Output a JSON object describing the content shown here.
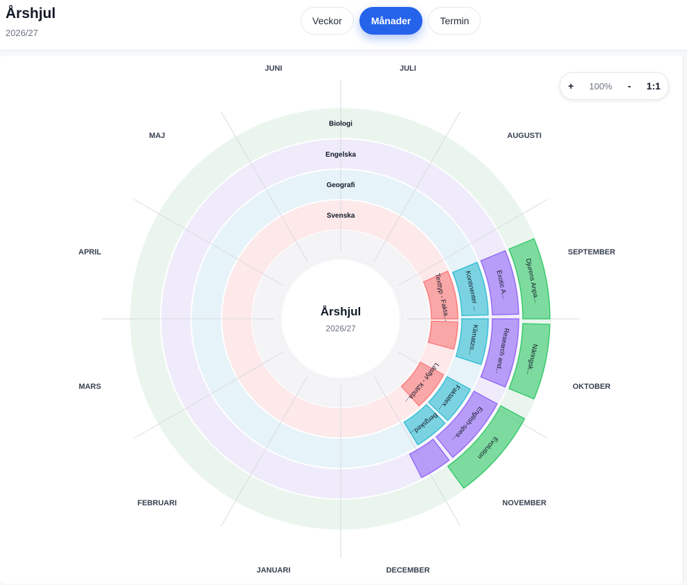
{
  "header": {
    "title": "Årshjul",
    "subtitle": "2026/27"
  },
  "tabs": [
    {
      "label": "Veckor",
      "active": false
    },
    {
      "label": "Månader",
      "active": true
    },
    {
      "label": "Termin",
      "active": false
    }
  ],
  "zoom": {
    "plus": "+",
    "level": "100%",
    "minus": "-",
    "reset": "1:1"
  },
  "wheel": {
    "center_title": "Årshjul",
    "center_subtitle": "2026/27",
    "months": [
      "JULI",
      "AUGUSTI",
      "SEPTEMBER",
      "OKTOBER",
      "NOVEMBER",
      "DECEMBER",
      "JANUARI",
      "FEBRUARI",
      "MARS",
      "APRIL",
      "MAJ",
      "JUNI"
    ],
    "rings": [
      {
        "name": "Svenska",
        "color": "#f87171",
        "bg": "#fde8ea"
      },
      {
        "name": "Geografi",
        "color": "#22b8cf",
        "bg": "#e6f3f9"
      },
      {
        "name": "Engelska",
        "color": "#8b5cf6",
        "bg": "#efebfa"
      },
      {
        "name": "Biologi",
        "color": "#22c55e",
        "bg": "#eaf5ee"
      }
    ],
    "events": [
      {
        "ring": 0,
        "label": "Texttyp - Fakta...",
        "start": 2.2,
        "end": 3.0
      },
      {
        "ring": 0,
        "label": "",
        "start": 3.05,
        "end": 3.5
      },
      {
        "ring": 0,
        "label": "Läsflyt - Kända...",
        "start": 3.95,
        "end": 4.6
      },
      {
        "ring": 1,
        "label": "Kontinenter ...",
        "start": 2.25,
        "end": 2.95
      },
      {
        "ring": 1,
        "label": "Klimatzo...",
        "start": 3.0,
        "end": 3.6
      },
      {
        "ring": 1,
        "label": "Faktatex...",
        "start": 3.95,
        "end": 4.45
      },
      {
        "ring": 1,
        "label": "Bergsked...",
        "start": 4.5,
        "end": 4.95
      },
      {
        "ring": 2,
        "label": "Exotic A...",
        "start": 2.25,
        "end": 2.95
      },
      {
        "ring": 2,
        "label": "Research and...",
        "start": 3.0,
        "end": 3.75
      },
      {
        "ring": 2,
        "label": "English-spea...",
        "start": 3.95,
        "end": 4.7
      },
      {
        "ring": 2,
        "label": "",
        "start": 4.75,
        "end": 5.1
      },
      {
        "ring": 3,
        "label": "Djurens Anpa...",
        "start": 2.25,
        "end": 3.0
      },
      {
        "ring": 3,
        "label": "Näringsk...",
        "start": 3.05,
        "end": 3.75
      },
      {
        "ring": 3,
        "label": "Evolution",
        "start": 3.95,
        "end": 4.8
      }
    ]
  }
}
